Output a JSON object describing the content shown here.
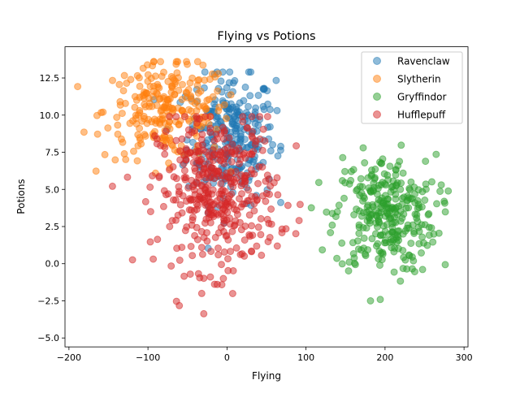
{
  "chart_data": {
    "type": "scatter",
    "title": "Flying vs Potions",
    "xlabel": "Flying",
    "ylabel": "Potions",
    "xlim": [
      -205,
      305
    ],
    "ylim": [
      -5.6,
      14.6
    ],
    "xticks": [
      -200,
      -100,
      0,
      100,
      200,
      300
    ],
    "xtick_labels": [
      "−200",
      "−100",
      "0",
      "100",
      "200",
      "300"
    ],
    "yticks": [
      -5.0,
      -2.5,
      0.0,
      2.5,
      5.0,
      7.5,
      10.0,
      12.5
    ],
    "ytick_labels": [
      "−5.0",
      "−2.5",
      "0.0",
      "2.5",
      "5.0",
      "7.5",
      "10.0",
      "12.5"
    ],
    "grid": false,
    "legend_position": "top-right",
    "point_alpha": 0.5,
    "series": [
      {
        "name": "Ravenclaw",
        "color": "#1f77b4",
        "count": 270,
        "center": [
          5,
          8.5
        ],
        "spread": [
          28,
          2.2
        ],
        "range": {
          "x": [
            -105,
            68
          ],
          "y": [
            0.1,
            12.9
          ]
        }
      },
      {
        "name": "Slytherin",
        "color": "#ff7f0e",
        "count": 250,
        "center": [
          -75,
          10.3
        ],
        "spread": [
          40,
          1.6
        ],
        "range": {
          "x": [
            -190,
            5
          ],
          "y": [
            5.2,
            13.6
          ]
        }
      },
      {
        "name": "Gryffindor",
        "color": "#2ca02c",
        "count": 300,
        "center": [
          200,
          3.3
        ],
        "spread": [
          32,
          2.0
        ],
        "range": {
          "x": [
            105,
            280
          ],
          "y": [
            -2.5,
            8.1
          ]
        }
      },
      {
        "name": "Hufflepuff",
        "color": "#d62728",
        "count": 420,
        "center": [
          -12,
          4.8
        ],
        "spread": [
          38,
          2.6
        ],
        "range": {
          "x": [
            -145,
            115
          ],
          "y": [
            -4.7,
            9.9
          ]
        }
      }
    ]
  }
}
